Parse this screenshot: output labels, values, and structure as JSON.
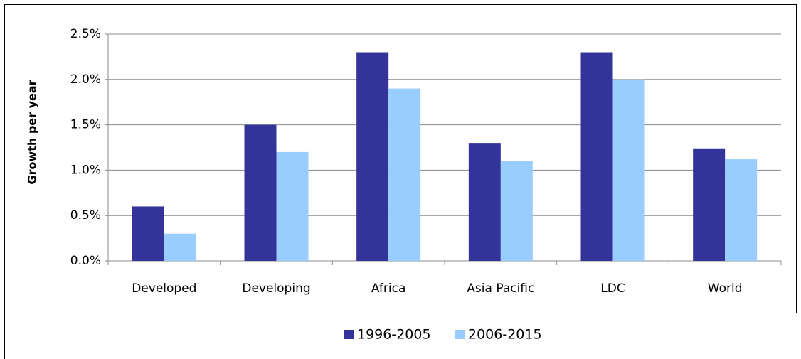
{
  "chart_data": {
    "type": "bar",
    "y_label": "Growth per year",
    "categories": [
      "Developed",
      "Developing",
      "Africa",
      "Asia Pacific",
      "LDC",
      "World"
    ],
    "series": [
      {
        "name": "1996-2005",
        "color": "#333399",
        "values": [
          0.6,
          1.5,
          2.3,
          1.3,
          2.3,
          1.24
        ]
      },
      {
        "name": "2006-2015",
        "color": "#99ccff",
        "values": [
          0.3,
          1.2,
          1.9,
          1.1,
          2.0,
          1.12
        ]
      }
    ],
    "ylim": [
      0,
      2.5
    ],
    "yticks": [
      {
        "value": 0,
        "label": "0.0%"
      },
      {
        "value": 0.5,
        "label": "0.5%"
      },
      {
        "value": 1,
        "label": "1.0%"
      },
      {
        "value": 1.5,
        "label": "1.5%"
      },
      {
        "value": 2,
        "label": "2.0%"
      },
      {
        "value": 2.5,
        "label": "2.5%"
      }
    ],
    "grid": true,
    "legend": "bottom"
  }
}
